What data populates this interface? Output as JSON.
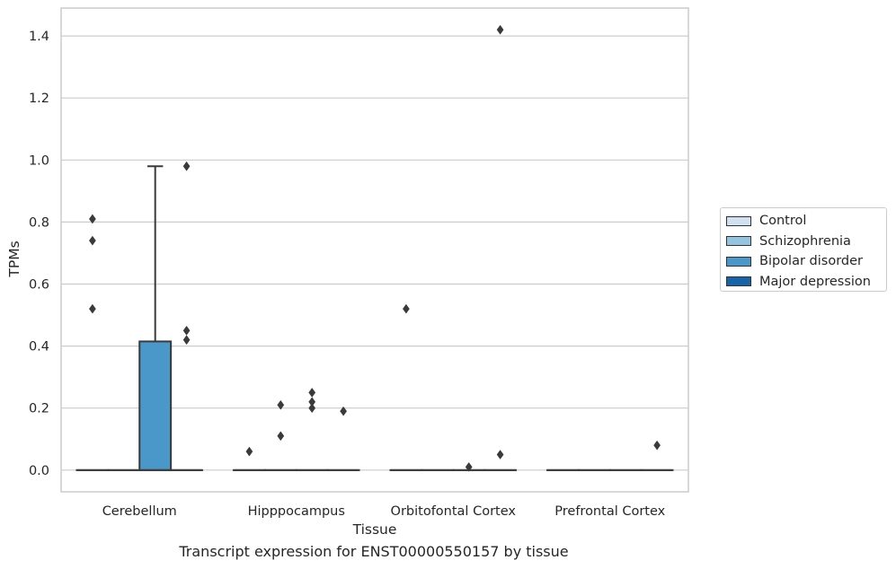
{
  "caption": "Transcript expression for ENST00000550157 by tissue",
  "colors": {
    "Control": "#d0e1f2",
    "Schizophrenia": "#94c4df",
    "Bipolar disorder": "#4a98c9",
    "Major depression": "#1764ab",
    "grid": "#cccccc",
    "frame": "#cccccc",
    "ink": "#3a3a3a"
  },
  "chart_data": {
    "type": "box",
    "xlabel": "Tissue",
    "ylabel": "TPMs",
    "ylim": [
      -0.07,
      1.49
    ],
    "yticks": [
      0.0,
      0.2,
      0.4,
      0.6,
      0.8,
      1.0,
      1.2,
      1.4
    ],
    "ytick_labels": [
      "0.0",
      "0.2",
      "0.4",
      "0.6",
      "0.8",
      "1.0",
      "1.2",
      "1.4"
    ],
    "grid": true,
    "legend_placement": "outside-right",
    "categories": [
      "Cerebellum",
      "Hipppocampus",
      "Orbitofontal Cortex",
      "Prefrontal Cortex"
    ],
    "series": [
      {
        "name": "Control",
        "boxes": [
          {
            "q1": 0,
            "median": 0,
            "q3": 0,
            "whisker_low": 0,
            "whisker_high": 0,
            "outliers": [
              0.52,
              0.74,
              0.81
            ]
          },
          {
            "q1": 0,
            "median": 0,
            "q3": 0,
            "whisker_low": 0,
            "whisker_high": 0,
            "outliers": [
              0.06
            ]
          },
          {
            "q1": 0,
            "median": 0,
            "q3": 0,
            "whisker_low": 0,
            "whisker_high": 0,
            "outliers": [
              0.52
            ]
          },
          {
            "q1": 0,
            "median": 0,
            "q3": 0,
            "whisker_low": 0,
            "whisker_high": 0,
            "outliers": []
          }
        ]
      },
      {
        "name": "Schizophrenia",
        "boxes": [
          {
            "q1": 0,
            "median": 0,
            "q3": 0,
            "whisker_low": 0,
            "whisker_high": 0,
            "outliers": []
          },
          {
            "q1": 0,
            "median": 0,
            "q3": 0,
            "whisker_low": 0,
            "whisker_high": 0,
            "outliers": [
              0.11,
              0.21
            ]
          },
          {
            "q1": 0,
            "median": 0,
            "q3": 0,
            "whisker_low": 0,
            "whisker_high": 0,
            "outliers": []
          },
          {
            "q1": 0,
            "median": 0,
            "q3": 0,
            "whisker_low": 0,
            "whisker_high": 0,
            "outliers": []
          }
        ]
      },
      {
        "name": "Bipolar disorder",
        "boxes": [
          {
            "q1": 0,
            "median": 0,
            "q3": 0.415,
            "whisker_low": 0,
            "whisker_high": 0.98,
            "outliers": []
          },
          {
            "q1": 0,
            "median": 0,
            "q3": 0,
            "whisker_low": 0,
            "whisker_high": 0,
            "outliers": [
              0.2,
              0.22,
              0.25
            ]
          },
          {
            "q1": 0,
            "median": 0,
            "q3": 0,
            "whisker_low": 0,
            "whisker_high": 0,
            "outliers": [
              0.01
            ]
          },
          {
            "q1": 0,
            "median": 0,
            "q3": 0,
            "whisker_low": 0,
            "whisker_high": 0,
            "outliers": []
          }
        ]
      },
      {
        "name": "Major depression",
        "boxes": [
          {
            "q1": 0,
            "median": 0,
            "q3": 0,
            "whisker_low": 0,
            "whisker_high": 0,
            "outliers": [
              0.42,
              0.45,
              0.98
            ]
          },
          {
            "q1": 0,
            "median": 0,
            "q3": 0,
            "whisker_low": 0,
            "whisker_high": 0,
            "outliers": [
              0.19
            ]
          },
          {
            "q1": 0,
            "median": 0,
            "q3": 0,
            "whisker_low": 0,
            "whisker_high": 0,
            "outliers": [
              0.05,
              1.42
            ]
          },
          {
            "q1": 0,
            "median": 0,
            "q3": 0,
            "whisker_low": 0,
            "whisker_high": 0,
            "outliers": [
              0.08
            ]
          }
        ]
      }
    ]
  }
}
